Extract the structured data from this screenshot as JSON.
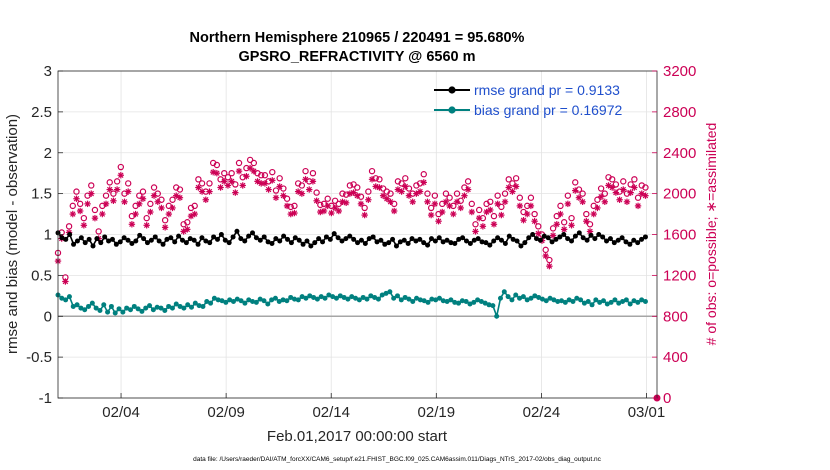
{
  "chart_data": {
    "type": "line",
    "title_line1": "Northern Hemisphere 210965 / 220491 = 95.680%",
    "title_line2": "GPSRO_REFRACTIVITY @ 6560 m",
    "xlabel": "Feb.01,2017 00:00:00 start",
    "ylabel_left": "rmse and bias (model - observation)",
    "ylabel_right": "# of obs: o=possible; ∗=assimilated",
    "footer": "data file: /Users/raeder/DAI/ATM_forcXX/CAM6_setup/f.e21.FHIST_BGC.f09_025.CAM6assim.011/Diags_NTrS_2017-02/obs_diag_output.nc",
    "xlim": [
      1.0,
      29.5
    ],
    "x_ticks": [
      {
        "label": "02/04",
        "value": 4
      },
      {
        "label": "02/09",
        "value": 9
      },
      {
        "label": "02/14",
        "value": 14
      },
      {
        "label": "02/19",
        "value": 19
      },
      {
        "label": "02/24",
        "value": 24
      },
      {
        "label": "03/01",
        "value": 29
      }
    ],
    "left_axis": {
      "ylim": [
        -1,
        3
      ],
      "ticks": [
        "-1",
        "-0.5",
        "0",
        "0.5",
        "1",
        "1.5",
        "2",
        "2.5",
        "3"
      ],
      "color": "#000000"
    },
    "right_axis": {
      "ylim": [
        0,
        3200
      ],
      "ticks": [
        "0",
        "400",
        "800",
        "1200",
        "1600",
        "2000",
        "2400",
        "2800",
        "3200"
      ],
      "color": "#cc0055"
    },
    "legend_position": "top-right",
    "series": [
      {
        "name": "rmse grand pr = 0.9133",
        "color": "#000000",
        "axis": "left",
        "values": [
          1.02,
          0.96,
          0.94,
          1.0,
          0.88,
          0.92,
          0.96,
          0.9,
          0.94,
          0.86,
          0.95,
          0.9,
          0.97,
          0.92,
          0.94,
          0.88,
          0.91,
          0.96,
          0.93,
          0.89,
          0.92,
          0.99,
          0.95,
          0.9,
          0.93,
          0.97,
          0.92,
          0.88,
          0.94,
          0.96,
          0.91,
          0.98,
          0.93,
          0.9,
          0.95,
          0.93,
          0.88,
          0.96,
          0.92,
          0.9,
          0.97,
          0.94,
          1.0,
          0.93,
          0.9,
          0.97,
          1.04,
          0.95,
          0.92,
          0.98,
          1.02,
          0.96,
          0.93,
          0.97,
          0.91,
          0.89,
          0.95,
          0.92,
          0.98,
          0.94,
          0.9,
          0.96,
          0.93,
          0.88,
          0.92,
          0.86,
          0.9,
          0.95,
          0.91,
          0.97,
          0.94,
          1.01,
          0.96,
          0.92,
          0.95,
          0.98,
          0.94,
          0.9,
          0.93,
          0.89,
          0.95,
          0.97,
          0.91,
          0.93,
          0.88,
          0.9,
          0.94,
          0.86,
          0.91,
          0.93,
          0.89,
          0.95,
          0.92,
          0.94,
          0.9,
          0.87,
          0.95,
          0.92,
          0.96,
          0.91,
          0.93,
          0.9,
          0.89,
          0.94,
          0.96,
          0.92,
          0.89,
          0.93,
          0.95,
          0.91,
          0.9,
          0.87,
          0.92,
          0.96,
          0.93,
          0.89,
          0.98,
          0.94,
          0.92,
          0.86,
          0.9,
          0.96,
          1.0,
          0.95,
          0.93,
          0.98,
          0.96,
          0.91,
          0.94,
          0.97,
          1.0,
          0.95,
          0.92,
          0.98,
          1.02,
          0.96,
          0.93,
          0.99,
          0.95,
          1.0,
          0.97,
          0.92,
          0.95,
          0.9,
          0.93,
          0.96,
          0.91,
          0.88,
          0.93,
          0.9,
          0.94,
          0.97
        ]
      },
      {
        "name": "bias grand pr = 0.16972",
        "color": "#00807f",
        "axis": "left",
        "values": [
          0.26,
          0.22,
          0.2,
          0.24,
          0.12,
          0.14,
          0.1,
          0.08,
          0.12,
          0.16,
          0.1,
          0.07,
          0.14,
          0.05,
          0.12,
          0.04,
          0.09,
          0.05,
          0.1,
          0.08,
          0.12,
          0.09,
          0.06,
          0.1,
          0.13,
          0.08,
          0.11,
          0.1,
          0.07,
          0.12,
          0.1,
          0.15,
          0.12,
          0.1,
          0.14,
          0.11,
          0.16,
          0.13,
          0.12,
          0.18,
          0.16,
          0.22,
          0.2,
          0.19,
          0.17,
          0.2,
          0.18,
          0.21,
          0.19,
          0.16,
          0.2,
          0.18,
          0.17,
          0.21,
          0.19,
          0.15,
          0.2,
          0.22,
          0.18,
          0.2,
          0.19,
          0.23,
          0.21,
          0.2,
          0.24,
          0.22,
          0.25,
          0.23,
          0.21,
          0.24,
          0.22,
          0.26,
          0.24,
          0.22,
          0.25,
          0.23,
          0.21,
          0.24,
          0.22,
          0.2,
          0.23,
          0.21,
          0.25,
          0.23,
          0.21,
          0.26,
          0.28,
          0.3,
          0.22,
          0.25,
          0.2,
          0.23,
          0.21,
          0.18,
          0.22,
          0.2,
          0.19,
          0.17,
          0.21,
          0.2,
          0.22,
          0.19,
          0.18,
          0.2,
          0.17,
          0.16,
          0.19,
          0.18,
          0.15,
          0.17,
          0.2,
          0.18,
          0.16,
          0.14,
          0.13,
          0.0,
          0.22,
          0.3,
          0.24,
          0.2,
          0.26,
          0.22,
          0.24,
          0.2,
          0.22,
          0.25,
          0.23,
          0.21,
          0.19,
          0.22,
          0.2,
          0.18,
          0.19,
          0.17,
          0.2,
          0.18,
          0.22,
          0.2,
          0.16,
          0.18,
          0.14,
          0.2,
          0.17,
          0.19,
          0.15,
          0.17,
          0.2,
          0.16,
          0.18,
          0.2,
          0.15,
          0.19,
          0.17,
          0.2,
          0.18
        ]
      },
      {
        "name": "possible obs",
        "color": "#cc0055",
        "axis": "right",
        "marker": "o",
        "values": [
          1420,
          1620,
          1180,
          1680,
          1880,
          2020,
          1900,
          1760,
          1980,
          2080,
          1840,
          1630,
          1880,
          1980,
          2110,
          2000,
          2120,
          2260,
          2000,
          2100,
          1780,
          1880,
          1980,
          2020,
          1760,
          1900,
          2060,
          2000,
          1940,
          1740,
          1880,
          1940,
          2060,
          2040,
          1700,
          1720,
          1860,
          1880,
          2140,
          2100,
          2020,
          2100,
          2300,
          2280,
          2140,
          2200,
          2160,
          2200,
          2090,
          2300,
          2160,
          2250,
          2330,
          2300,
          2200,
          2180,
          2180,
          2120,
          2210,
          2030,
          2150,
          2050,
          1950,
          1870,
          1880,
          2100,
          2080,
          2220,
          2120,
          2200,
          2010,
          1890,
          1900,
          1950,
          1880,
          1930,
          1900,
          2000,
          1990,
          2080,
          2090,
          2060,
          1970,
          1860,
          2020,
          2220,
          2150,
          2140,
          2050,
          2020,
          2000,
          1900,
          2120,
          2100,
          2150,
          2050,
          2000,
          2080,
          2100,
          2190,
          2000,
          1860,
          1980,
          1800,
          1900,
          2000,
          1960,
          1880,
          2000,
          1930,
          2060,
          2120,
          1900,
          1700,
          1840,
          1760,
          1900,
          1920,
          1780,
          1980,
          1870,
          2000,
          2140,
          2100,
          2150,
          1960,
          1820,
          1880,
          1960,
          1800,
          1680,
          1600,
          1450,
          1350,
          1660,
          1780,
          1880,
          1720,
          1980,
          1760,
          2110,
          2040,
          2000,
          1800,
          1700,
          1880,
          1940,
          2050,
          2000,
          2160,
          2140,
          2090,
          2020,
          2120,
          2000,
          2090,
          2140,
          1960,
          2080,
          2060
        ]
      },
      {
        "name": "assimilated obs",
        "color": "#cc0055",
        "axis": "right",
        "marker": "*",
        "values": [
          1340,
          1560,
          1140,
          1620,
          1800,
          1950,
          1830,
          1690,
          1900,
          2000,
          1760,
          1560,
          1800,
          1900,
          2040,
          1930,
          2040,
          2180,
          1920,
          2020,
          1700,
          1800,
          1900,
          1950,
          1690,
          1820,
          1980,
          1920,
          1860,
          1670,
          1800,
          1860,
          1980,
          1960,
          1630,
          1650,
          1780,
          1800,
          2060,
          2020,
          1940,
          2020,
          2210,
          2200,
          2060,
          2120,
          2080,
          2120,
          2010,
          2220,
          2080,
          2170,
          2250,
          2220,
          2120,
          2100,
          2100,
          2040,
          2130,
          1960,
          2070,
          1980,
          1880,
          1800,
          1810,
          2020,
          2000,
          2140,
          2040,
          2120,
          1930,
          1820,
          1830,
          1880,
          1810,
          1860,
          1830,
          1920,
          1910,
          2000,
          2010,
          1980,
          1900,
          1790,
          1940,
          2140,
          2070,
          2060,
          1980,
          1950,
          1920,
          1830,
          2040,
          2020,
          2070,
          1980,
          1920,
          2000,
          2020,
          2110,
          1920,
          1790,
          1900,
          1730,
          1820,
          1920,
          1880,
          1800,
          1920,
          1860,
          1980,
          2040,
          1820,
          1630,
          1760,
          1680,
          1820,
          1840,
          1700,
          1900,
          1790,
          1920,
          2060,
          2020,
          2070,
          1880,
          1740,
          1800,
          1880,
          1730,
          1610,
          1540,
          1390,
          1290,
          1590,
          1700,
          1800,
          1650,
          1900,
          1690,
          2030,
          1960,
          1920,
          1730,
          1630,
          1800,
          1860,
          1970,
          1920,
          2080,
          2060,
          2010,
          1940,
          2040,
          1920,
          2010,
          2060,
          1880,
          2000,
          1980
        ]
      }
    ]
  }
}
